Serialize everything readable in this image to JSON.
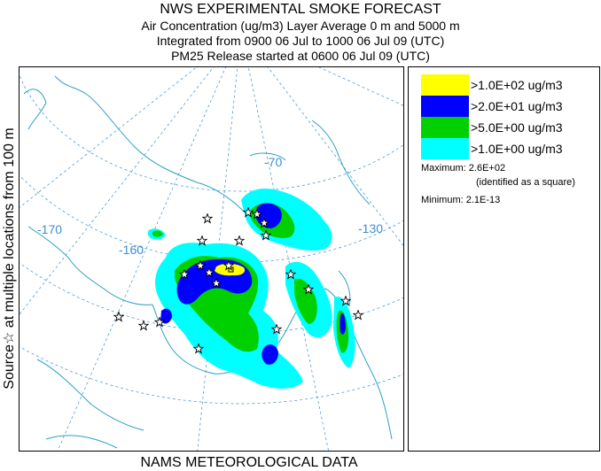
{
  "header": {
    "title": "NWS EXPERIMENTAL SMOKE FORECAST",
    "line2": "Air Concentration (ug/m3) Layer Average    0 m and  5000 m",
    "line3": "Integrated from 0900 06 Jul to 1000 06 Jul 09 (UTC)",
    "line4": "PM25 Release started at 0600 06 Jul 09 (UTC)"
  },
  "side_label": "Source☆  at multiple locations    from   100 m",
  "map": {
    "graticule_labels": [
      "-170",
      "-160",
      "-70",
      "-130"
    ],
    "coast_color": "#2aa1c8",
    "graticule_color": "#3a8fd0"
  },
  "legend": {
    "items": [
      {
        "label": ">1.0E+02 ug/m3",
        "color": "#ffff00"
      },
      {
        "label": ">2.0E+01 ug/m3",
        "color": "#0000ff"
      },
      {
        "label": ">5.0E+00 ug/m3",
        "color": "#00d000"
      },
      {
        "label": ">1.0E+00 ug/m3",
        "color": "#00ffff"
      }
    ],
    "maximum_label": "Maximum: 2.6E+02",
    "maximum_note": "(identified as a square)",
    "minimum_label": "Minimum: 2.1E-13"
  },
  "footer": "NAMS METEOROLOGICAL DATA"
}
